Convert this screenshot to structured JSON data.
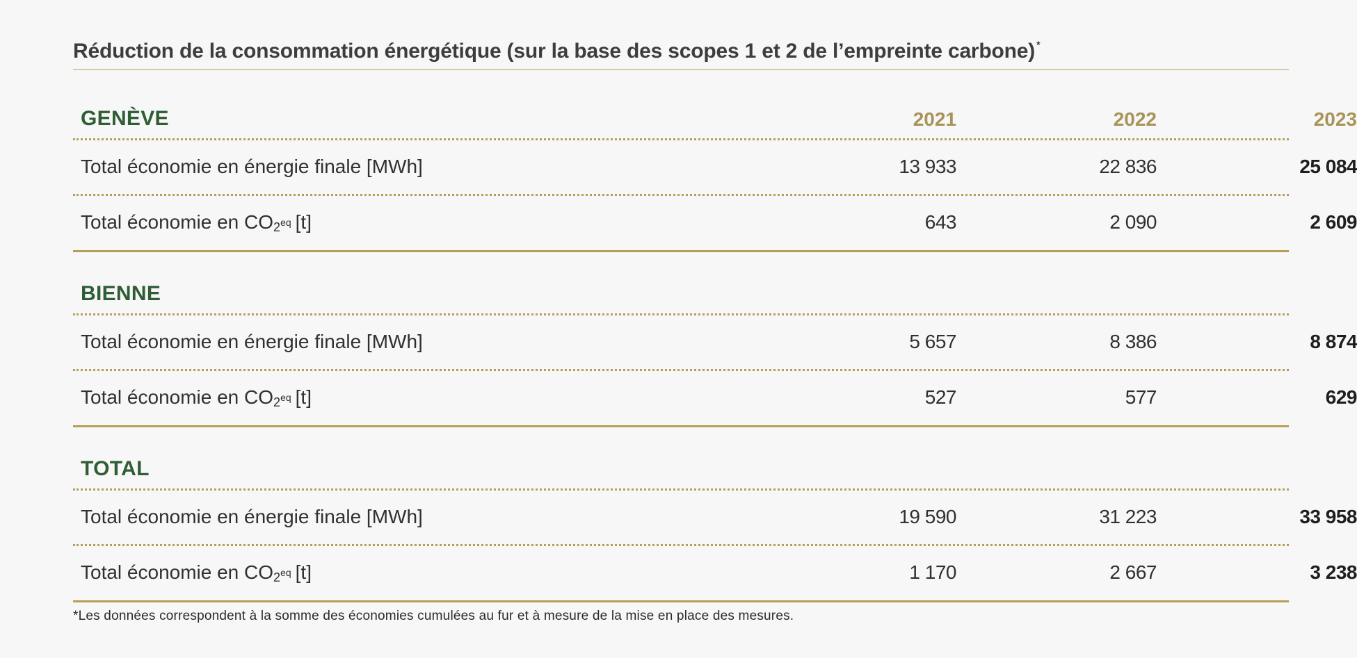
{
  "title": "Réduction de la consommation énergétique (sur la base des scopes 1 et 2 de l’empreinte carbone)",
  "title_marker": "*",
  "years": [
    "2021",
    "2022",
    "2023"
  ],
  "labels": {
    "energy": "Total économie en énergie finale [MWh]",
    "co2_prefix": "Total économie en CO",
    "co2_sub": "2",
    "co2_sup": "eq",
    "co2_suffix": "[t]"
  },
  "sections": [
    {
      "name": "GENÈVE",
      "energy": [
        "13 933",
        "22 836",
        "25 084"
      ],
      "co2": [
        "643",
        "2 090",
        "2 609"
      ]
    },
    {
      "name": "BIENNE",
      "energy": [
        "5 657",
        "8 386",
        "8 874"
      ],
      "co2": [
        "527",
        "577",
        "629"
      ]
    },
    {
      "name": "TOTAL",
      "energy": [
        "19 590",
        "31 223",
        "33 958"
      ],
      "co2": [
        "1 170",
        "2 667",
        "3 238"
      ]
    }
  ],
  "footnote": "*Les données correspondent à la somme des économies cumulées au fur et à mesure de la mise en place des mesures.",
  "colors": {
    "accent_gold": "#b59e58",
    "region_green": "#2f5d34",
    "year_gold": "#a89458",
    "background": "#f7f7f7"
  }
}
